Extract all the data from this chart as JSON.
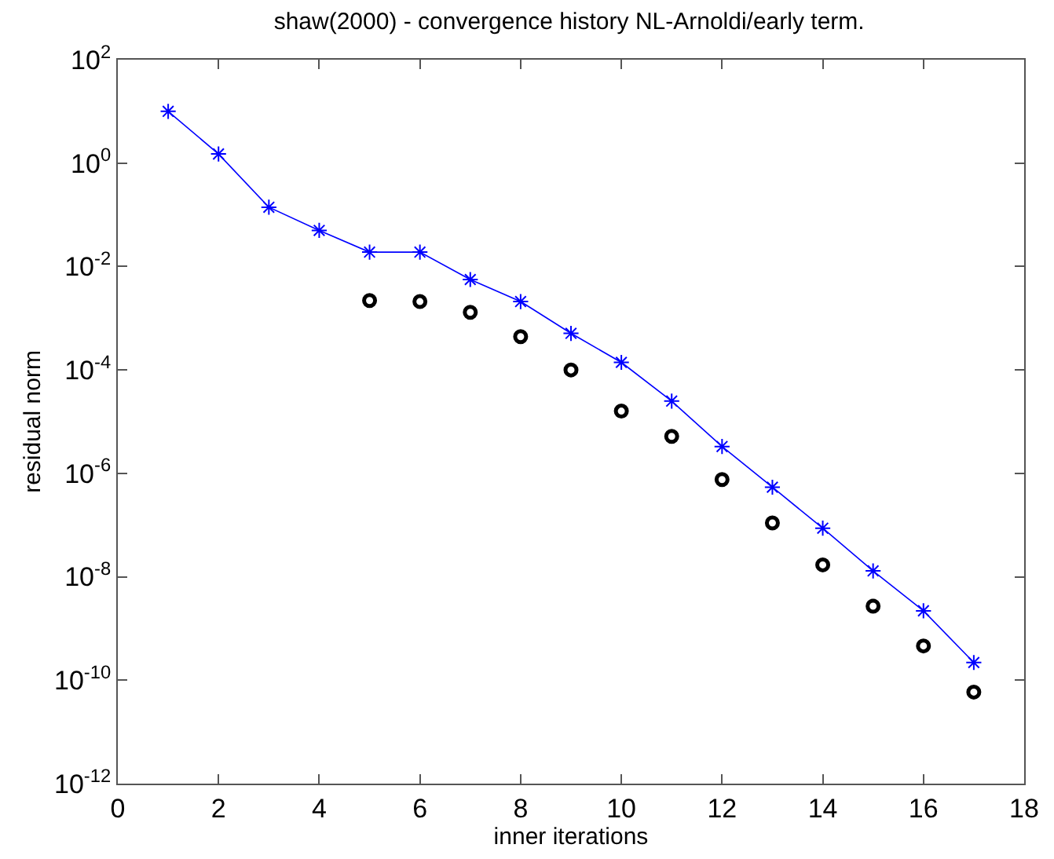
{
  "chart_data": {
    "type": "line",
    "title": "shaw(2000) - convergence history NL-Arnoldi/early term.",
    "xlabel": "inner iterations",
    "ylabel": "residual norm",
    "log": "y",
    "xlim": [
      0,
      18
    ],
    "xticks": [
      0,
      2,
      4,
      6,
      8,
      10,
      12,
      14,
      16,
      18
    ],
    "ylim": [
      1e-12,
      100
    ],
    "yticks": [
      {
        "value": 100,
        "label": "10$^{2}$"
      },
      {
        "value": 1,
        "label": "10$^{0}$"
      },
      {
        "value": 0.01,
        "label": "10$^{-2}$"
      },
      {
        "value": 0.0001,
        "label": "10$^{-4}$"
      },
      {
        "value": 1e-06,
        "label": "10$^{-6}$"
      },
      {
        "value": 1e-08,
        "label": "10$^{-8}$"
      },
      {
        "value": 1e-10,
        "label": "10$^{-10}$"
      },
      {
        "value": 1e-12,
        "label": "10$^{-12}$"
      }
    ],
    "series": [
      {
        "marker": "cross",
        "color": "#0000ff",
        "x": [
          1,
          2,
          3,
          4,
          5,
          6,
          7,
          8,
          9,
          10,
          11,
          12,
          13,
          14,
          15,
          16,
          17
        ],
        "values": [
          10,
          1.5,
          0.14,
          0.05,
          0.019,
          0.019,
          0.0056,
          0.0021,
          0.00051,
          0.00014,
          2.5e-05,
          3.3e-06,
          5.4e-07,
          8.7e-08,
          1.3e-08,
          2.2e-09,
          2.2e-10
        ]
      },
      {
        "type": "scatter",
        "marker": "circle",
        "color": "#000000",
        "x": [
          5,
          6,
          7,
          8,
          9,
          10,
          11,
          12,
          13,
          14,
          15,
          16,
          17
        ],
        "values": [
          0.0022,
          0.0021,
          0.0013,
          0.00044,
          0.0001,
          1.6e-05,
          5.2e-06,
          7.6e-07,
          1.1e-07,
          1.7e-08,
          2.7e-09,
          4.6e-10,
          5.9e-11
        ]
      }
    ]
  }
}
